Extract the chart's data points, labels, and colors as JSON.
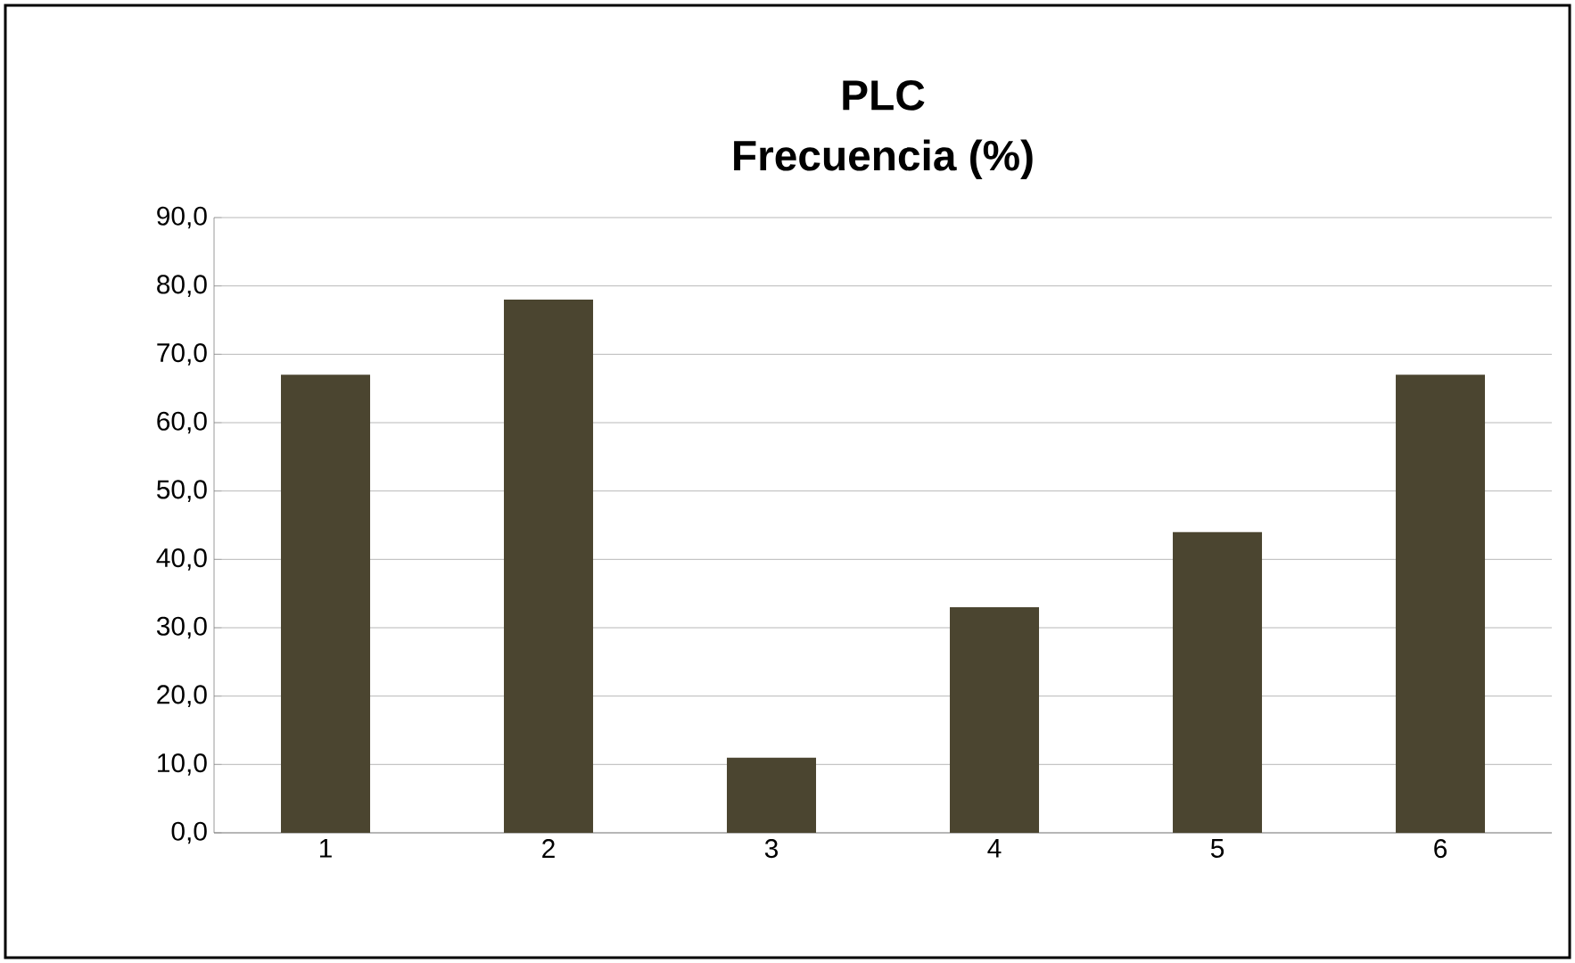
{
  "chart_data": {
    "type": "bar",
    "title": "PLC",
    "subtitle": "Frecuencia (%)",
    "categories": [
      "1",
      "2",
      "3",
      "4",
      "5",
      "6"
    ],
    "values": [
      67,
      78,
      11,
      33,
      44,
      67
    ],
    "color": "#4b4530",
    "ylim": [
      0,
      90
    ],
    "yticks": [
      {
        "value": 0,
        "label": "0,0"
      },
      {
        "value": 10,
        "label": "10,0"
      },
      {
        "value": 20,
        "label": "20,0"
      },
      {
        "value": 30,
        "label": "30,0"
      },
      {
        "value": 40,
        "label": "40,0"
      },
      {
        "value": 50,
        "label": "50,0"
      },
      {
        "value": 60,
        "label": "60,0"
      },
      {
        "value": 70,
        "label": "70,0"
      },
      {
        "value": 80,
        "label": "80,0"
      },
      {
        "value": 90,
        "label": "90,0"
      }
    ],
    "grid": "y"
  }
}
